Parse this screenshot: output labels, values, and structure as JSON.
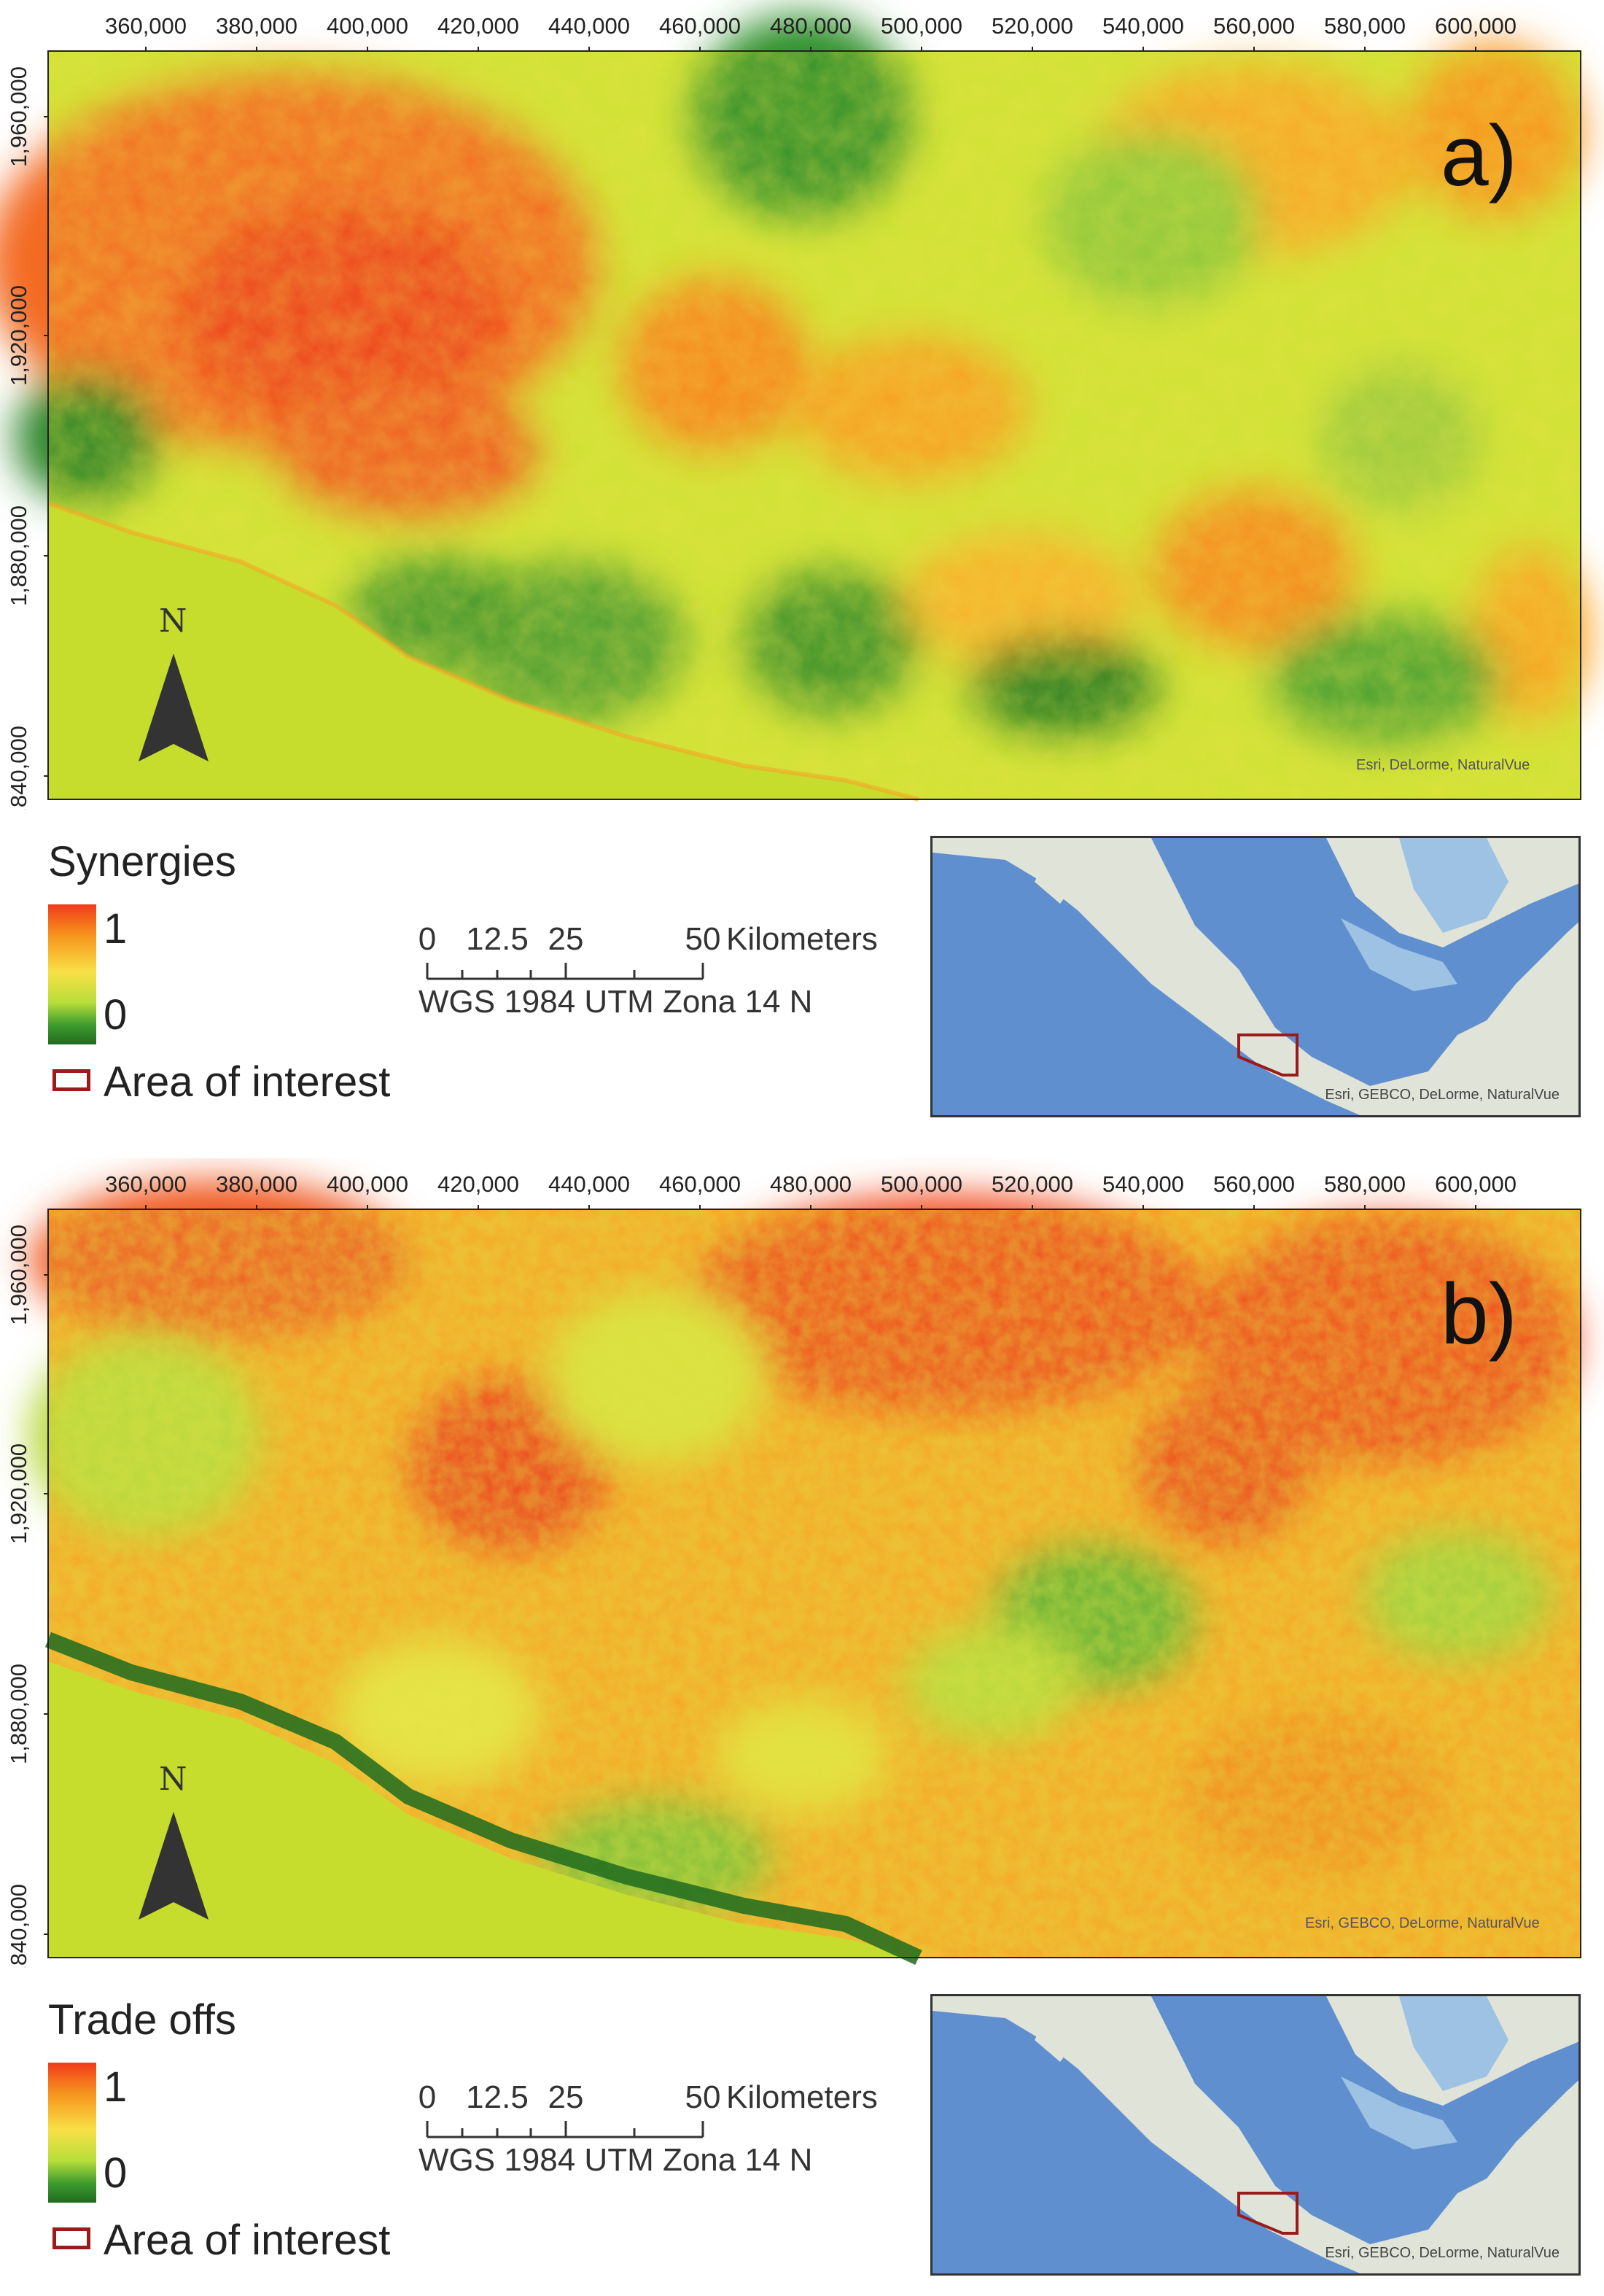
{
  "panels": [
    {
      "letter": "a)",
      "legend_title": "Synergies",
      "legend_high": "1",
      "legend_low": "0",
      "aoi_label": "Area of interest",
      "map_credit": "Esri, DeLorme, NaturalVue",
      "inset_credit": "Esri, GEBCO, DeLorme, NaturalVue",
      "north_label": "N"
    },
    {
      "letter": "b)",
      "legend_title": "Trade offs",
      "legend_high": "1",
      "legend_low": "0",
      "aoi_label": "Area of interest",
      "map_credit": "Esri, GEBCO, DeLorme, NaturalVue",
      "inset_credit": "Esri, GEBCO, DeLorme, NaturalVue",
      "north_label": "N"
    }
  ],
  "x_ticks": [
    "360,000",
    "380,000",
    "400,000",
    "420,000",
    "440,000",
    "460,000",
    "480,000",
    "500,000",
    "520,000",
    "540,000",
    "560,000",
    "580,000",
    "600,000"
  ],
  "y_ticks": [
    "1,960,000",
    "1,920,000",
    "1,880,000",
    "1,840,000"
  ],
  "scale": {
    "labels": [
      "0",
      "12.5",
      "25",
      "50"
    ],
    "unit": "Kilometers",
    "projection": "WGS 1984 UTM Zona 14 N"
  },
  "colors": {
    "high": "#f03a1c",
    "mid": "#f8e047",
    "low": "#1f6b1f",
    "ocean": "#c6dd2e",
    "aoi": "#9b1b1b"
  }
}
